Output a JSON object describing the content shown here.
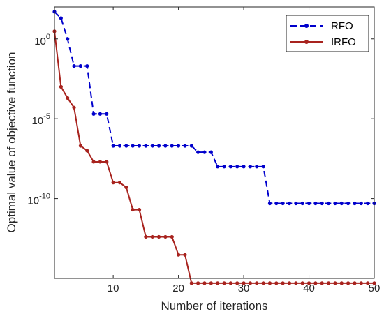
{
  "chart_data": {
    "type": "line",
    "title": "",
    "xlabel": "Number of iterations",
    "ylabel": "Optimal value of objective function",
    "x_scale": "linear",
    "y_scale": "log",
    "xlim": [
      1,
      50
    ],
    "ylim": [
      1e-15,
      100.0
    ],
    "x_ticks": [
      10,
      20,
      30,
      40,
      50
    ],
    "x_tick_labels": [
      "10",
      "20",
      "30",
      "40",
      "50"
    ],
    "y_ticks": [
      1,
      1e-05,
      1e-10
    ],
    "y_tick_labels": [
      {
        "base": "10",
        "exp": "0"
      },
      {
        "base": "10",
        "exp": "-5"
      },
      {
        "base": "10",
        "exp": "-10"
      }
    ],
    "grid": false,
    "legend_position": "top-right",
    "x": [
      1,
      2,
      3,
      4,
      5,
      6,
      7,
      8,
      9,
      10,
      11,
      12,
      13,
      14,
      15,
      16,
      17,
      18,
      19,
      20,
      21,
      22,
      23,
      24,
      25,
      26,
      27,
      28,
      29,
      30,
      31,
      32,
      33,
      34,
      35,
      36,
      37,
      38,
      39,
      40,
      41,
      42,
      43,
      44,
      45,
      46,
      47,
      48,
      49,
      50
    ],
    "series": [
      {
        "name": "RFO",
        "color": "#0000cc",
        "line_style": "dashed",
        "marker": "dot",
        "values": [
          50,
          20,
          1,
          0.02,
          0.02,
          0.02,
          2e-05,
          2e-05,
          2e-05,
          2e-07,
          2e-07,
          2e-07,
          2e-07,
          2e-07,
          2e-07,
          2e-07,
          2e-07,
          2e-07,
          2e-07,
          2e-07,
          2e-07,
          2e-07,
          8e-08,
          8e-08,
          8e-08,
          1e-08,
          1e-08,
          1e-08,
          1e-08,
          1e-08,
          1e-08,
          1e-08,
          1e-08,
          5e-11,
          5e-11,
          5e-11,
          5e-11,
          5e-11,
          5e-11,
          5e-11,
          5e-11,
          5e-11,
          5e-11,
          5e-11,
          5e-11,
          5e-11,
          5e-11,
          5e-11,
          5e-11,
          5e-11
        ]
      },
      {
        "name": "IRFO",
        "color": "#a8231e",
        "line_style": "solid",
        "marker": "dot",
        "values": [
          3,
          0.001,
          0.0002,
          5e-05,
          2e-07,
          1e-07,
          2e-08,
          2e-08,
          2e-08,
          1e-09,
          1e-09,
          5e-10,
          2e-11,
          2e-11,
          4e-13,
          4e-13,
          4e-13,
          4e-13,
          4e-13,
          3e-14,
          3e-14,
          5e-16,
          5e-16,
          5e-16,
          5e-16,
          5e-16,
          5e-16,
          5e-16,
          5e-16,
          5e-16,
          5e-16,
          5e-16,
          5e-16,
          5e-16,
          5e-16,
          5e-16,
          5e-16,
          5e-16,
          5e-16,
          5e-16,
          5e-16,
          5e-16,
          5e-16,
          5e-16,
          5e-16,
          5e-16,
          5e-16,
          5e-16,
          5e-16,
          5e-16
        ]
      }
    ]
  }
}
